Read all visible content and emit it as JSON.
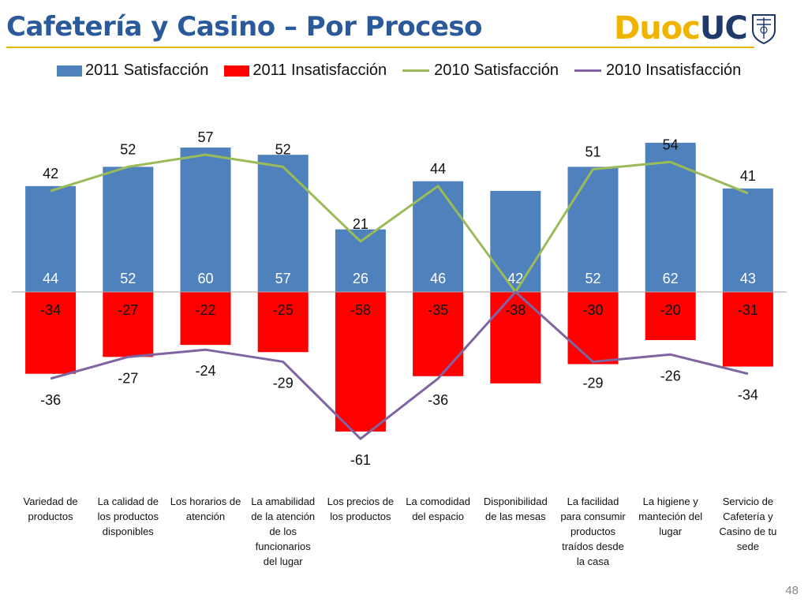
{
  "title": "Cafetería y Casino – Por Proceso",
  "logo": {
    "part1": "Duoc",
    "part2": "UC"
  },
  "page_number": "48",
  "legend": [
    {
      "label": "2011 Satisfacción",
      "color": "#4f81bd",
      "kind": "bar"
    },
    {
      "label": "2011 Insatisfacción",
      "color": "#ff0000",
      "kind": "bar"
    },
    {
      "label": "2010 Satisfacción",
      "color": "#9bbb59",
      "kind": "line"
    },
    {
      "label": "2010 Insatisfacción",
      "color": "#8064a2",
      "kind": "line"
    }
  ],
  "chart_data": {
    "type": "bar",
    "categories": [
      "Variedad de productos",
      "La calidad de los productos disponibles",
      "Los horarios de atención",
      "La amabilidad de la atención de los funcionarios del lugar",
      "Los precios de los productos",
      "La comodidad del espacio",
      "Disponibilidad de las mesas",
      "La facilidad para consumir productos traídos desde la casa",
      "La higiene y manteción del lugar",
      "Servicio de Cafetería y Casino de tu sede"
    ],
    "category_lines": [
      [
        "Variedad de",
        "productos"
      ],
      [
        "La calidad de",
        "los productos",
        "disponibles"
      ],
      [
        "Los horarios de",
        "atención"
      ],
      [
        "La amabilidad",
        "de la atención",
        "de los",
        "funcionarios",
        "del lugar"
      ],
      [
        "Los precios de",
        "los productos"
      ],
      [
        "La comodidad",
        "del espacio"
      ],
      [
        "Disponibilidad",
        "de las mesas"
      ],
      [
        "La facilidad",
        "para consumir",
        "productos",
        "traídos desde",
        "la casa"
      ],
      [
        "La higiene y",
        "manteción del",
        "lugar"
      ],
      [
        "Servicio de",
        "Cafetería y",
        "Casino de tu",
        "sede"
      ]
    ],
    "series": [
      {
        "name": "2011 Satisfacción",
        "type": "bar",
        "color": "#4f81bd",
        "values": [
          44,
          52,
          60,
          57,
          26,
          46,
          42,
          52,
          62,
          43
        ]
      },
      {
        "name": "2011 Insatisfacción",
        "type": "bar",
        "color": "#ff0000",
        "values": [
          -34,
          -27,
          -22,
          -25,
          -58,
          -35,
          -38,
          -30,
          -20,
          -31
        ]
      },
      {
        "name": "2010 Satisfacción",
        "type": "line",
        "color": "#9bbb59",
        "values": [
          42,
          52,
          57,
          52,
          21,
          44,
          0,
          51,
          54,
          41
        ]
      },
      {
        "name": "2010 Insatisfacción",
        "type": "line",
        "color": "#8064a2",
        "values": [
          -36,
          -27,
          -24,
          -29,
          -61,
          -36,
          0,
          -29,
          -26,
          -34
        ]
      }
    ],
    "line_label_shown": [
      true,
      true,
      true,
      true,
      true,
      true,
      false,
      true,
      true,
      true
    ],
    "ylim": [
      -65,
      65
    ],
    "grid": false,
    "legend_position": "top"
  }
}
